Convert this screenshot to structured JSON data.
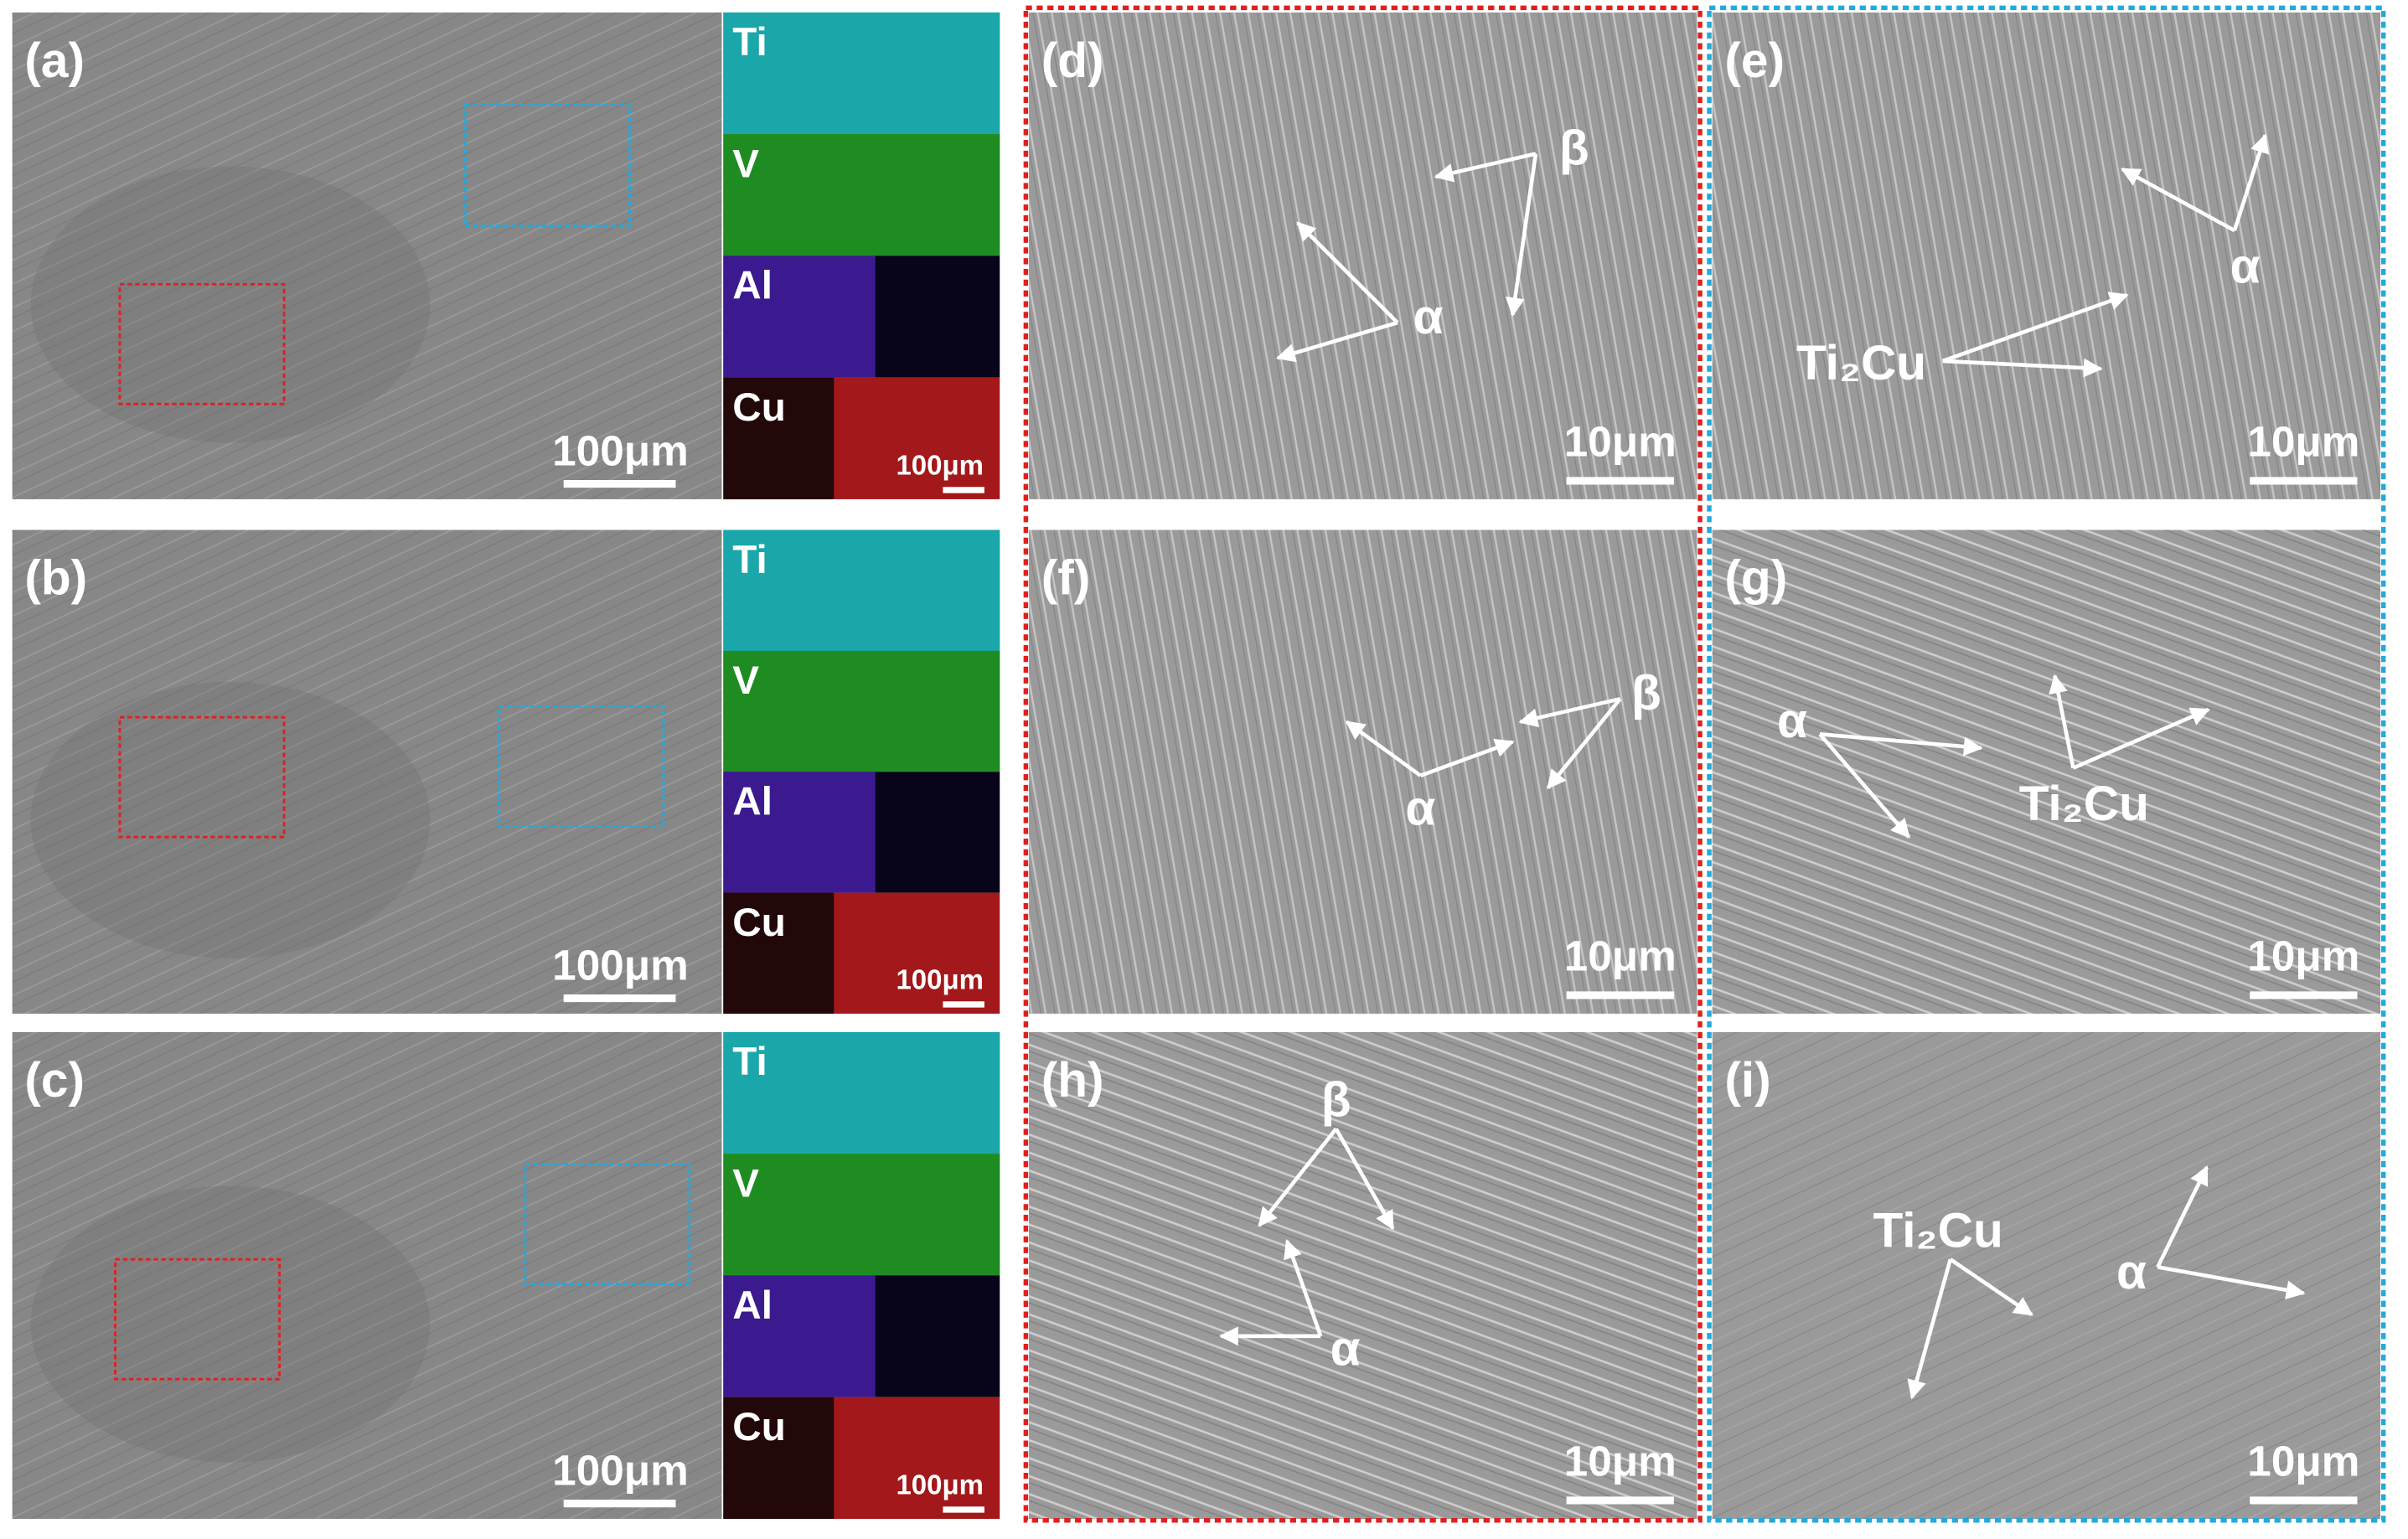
{
  "overview_panels": [
    {
      "label": "(a)",
      "scale_bar": "100μm",
      "maps": [
        "Ti",
        "V",
        "Al",
        "Cu"
      ],
      "map_scale_bar": "100μm"
    },
    {
      "label": "(b)",
      "scale_bar": "100μm",
      "maps": [
        "Ti",
        "V",
        "Al",
        "Cu"
      ],
      "map_scale_bar": "100μm"
    },
    {
      "label": "(c)",
      "scale_bar": "100μm",
      "maps": [
        "Ti",
        "V",
        "Al",
        "Cu"
      ],
      "map_scale_bar": "100μm"
    }
  ],
  "detail_panels": [
    {
      "label": "(d)",
      "scale_bar": "10μm",
      "annotations": [
        "β",
        "α"
      ]
    },
    {
      "label": "(e)",
      "scale_bar": "10μm",
      "annotations": [
        "α",
        "Ti₂Cu"
      ]
    },
    {
      "label": "(f)",
      "scale_bar": "10μm",
      "annotations": [
        "β",
        "α"
      ]
    },
    {
      "label": "(g)",
      "scale_bar": "10μm",
      "annotations": [
        "α",
        "Ti₂Cu"
      ]
    },
    {
      "label": "(h)",
      "scale_bar": "10μm",
      "annotations": [
        "β",
        "α"
      ]
    },
    {
      "label": "(i)",
      "scale_bar": "10μm",
      "annotations": [
        "Ti₂Cu",
        "α"
      ]
    }
  ]
}
